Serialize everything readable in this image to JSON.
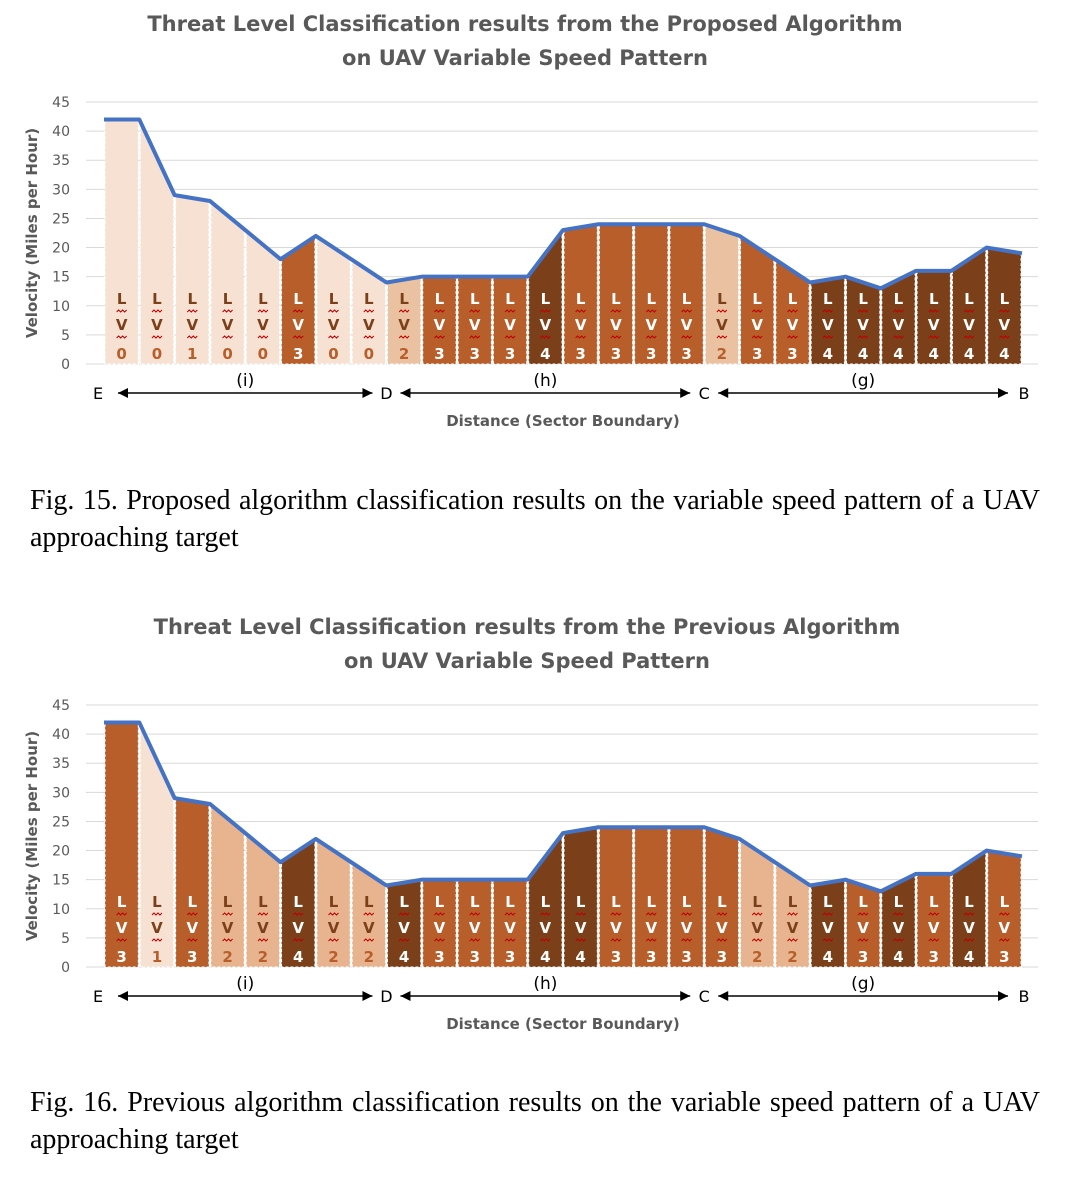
{
  "charts": [
    {
      "title_line1": "Threat Level Classification results from the Proposed Algorithm",
      "title_line2": "on UAV Variable Speed Pattern",
      "caption": "Fig. 15.  Proposed algorithm classification results on the variable speed pattern of a UAV approaching target"
    },
    {
      "title_line1": "Threat Level Classification results from the Previous Algorithm",
      "title_line2": "on UAV Variable Speed Pattern",
      "caption": "Fig. 16.  Previous algorithm classification results on the variable speed pattern of a UAV approaching target"
    }
  ],
  "chart_data": [
    {
      "type": "area",
      "title": "Threat Level Classification results from the Proposed Algorithm on UAV Variable Speed Pattern",
      "xlabel": "Distance (Sector Boundary)",
      "ylabel": "Velocity (Miles per Hour)",
      "ylim": [
        0,
        45
      ],
      "yticks": [
        0,
        5,
        10,
        15,
        20,
        25,
        30,
        35,
        40,
        45
      ],
      "grid": true,
      "velocity": [
        42,
        42,
        29,
        28,
        23,
        18,
        22,
        18,
        14,
        15,
        15,
        15,
        15,
        23,
        24,
        24,
        24,
        24,
        22,
        18,
        14,
        15,
        13,
        16,
        16,
        20,
        19
      ],
      "threat_levels": [
        0,
        0,
        1,
        0,
        0,
        3,
        0,
        0,
        2,
        3,
        3,
        3,
        4,
        3,
        3,
        3,
        3,
        2,
        3,
        3,
        4,
        4,
        4,
        4,
        4,
        4
      ],
      "level_prefix": "L",
      "level_mid": "V",
      "level_colors": [
        "#f6e1d3",
        "#f6e1d3",
        "#ebc2a1",
        "#b75e2b",
        "#7b4019"
      ],
      "line_color": "#4472c4",
      "boundaries": [
        {
          "label": "E",
          "segment": 0
        },
        {
          "label": "D",
          "segment": 8
        },
        {
          "label": "C",
          "segment": 17
        },
        {
          "label": "B",
          "segment": 26
        }
      ],
      "sectors": [
        {
          "label": "(i)",
          "from": 0,
          "to": 8
        },
        {
          "label": "(h)",
          "from": 8,
          "to": 17
        },
        {
          "label": "(g)",
          "from": 17,
          "to": 26
        }
      ]
    },
    {
      "type": "area",
      "title": "Threat Level Classification results from the Previous Algorithm on UAV Variable Speed Pattern",
      "xlabel": "Distance (Sector Boundary)",
      "ylabel": "Velocity (Miles per Hour)",
      "ylim": [
        0,
        45
      ],
      "yticks": [
        0,
        5,
        10,
        15,
        20,
        25,
        30,
        35,
        40,
        45
      ],
      "grid": true,
      "velocity": [
        42,
        42,
        29,
        28,
        23,
        18,
        22,
        18,
        14,
        15,
        15,
        15,
        15,
        23,
        24,
        24,
        24,
        24,
        22,
        18,
        14,
        15,
        13,
        16,
        16,
        20,
        19
      ],
      "threat_levels": [
        3,
        1,
        3,
        2,
        2,
        4,
        2,
        2,
        4,
        3,
        3,
        3,
        4,
        4,
        3,
        3,
        3,
        3,
        2,
        2,
        4,
        3,
        4,
        3,
        4,
        3
      ],
      "level_prefix": "L",
      "level_mid": "V",
      "level_colors": [
        "#f6e1d3",
        "#f6e1d3",
        "#e8b48f",
        "#b75e2b",
        "#7b4019"
      ],
      "line_color": "#4472c4",
      "boundaries": [
        {
          "label": "E",
          "segment": 0
        },
        {
          "label": "D",
          "segment": 8
        },
        {
          "label": "C",
          "segment": 17
        },
        {
          "label": "B",
          "segment": 26
        }
      ],
      "sectors": [
        {
          "label": "(i)",
          "from": 0,
          "to": 8
        },
        {
          "label": "(h)",
          "from": 8,
          "to": 17
        },
        {
          "label": "(g)",
          "from": 17,
          "to": 26
        }
      ]
    }
  ]
}
